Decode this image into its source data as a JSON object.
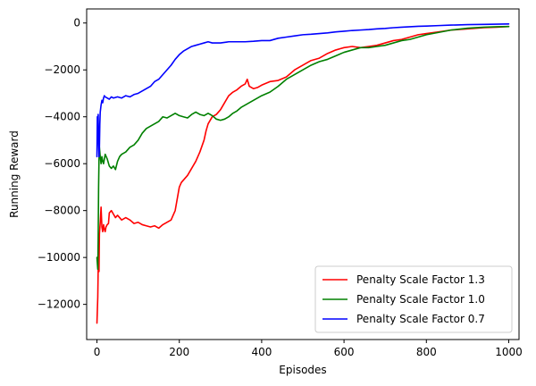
{
  "chart_data": {
    "type": "line",
    "title": "",
    "xlabel": "Episodes",
    "ylabel": "Running Reward",
    "xlim": [
      -25,
      1025
    ],
    "ylim": [
      -13500,
      600
    ],
    "xticks": [
      0,
      200,
      400,
      600,
      800,
      1000
    ],
    "yticks": [
      -12000,
      -10000,
      -8000,
      -6000,
      -4000,
      -2000,
      0
    ],
    "grid": false,
    "legend_position": "lower-right",
    "series": [
      {
        "name": "Penalty Scale Factor 1.3",
        "color": "#ff0000",
        "x": [
          0,
          2,
          3,
          5,
          6,
          8,
          10,
          12,
          14,
          16,
          18,
          20,
          22,
          25,
          28,
          30,
          35,
          40,
          45,
          50,
          55,
          60,
          70,
          80,
          90,
          100,
          110,
          120,
          130,
          140,
          150,
          160,
          170,
          180,
          190,
          200,
          205,
          210,
          220,
          230,
          240,
          250,
          260,
          265,
          270,
          280,
          290,
          300,
          310,
          320,
          330,
          340,
          350,
          360,
          365,
          370,
          380,
          390,
          400,
          420,
          440,
          460,
          480,
          500,
          520,
          540,
          560,
          580,
          600,
          620,
          640,
          660,
          680,
          700,
          720,
          740,
          760,
          780,
          800,
          830,
          860,
          900,
          940,
          970,
          1000
        ],
        "values": [
          -12800,
          -11700,
          -10500,
          -10600,
          -9000,
          -8500,
          -7850,
          -8700,
          -8900,
          -8600,
          -8800,
          -8900,
          -8700,
          -8600,
          -8550,
          -8100,
          -8000,
          -8150,
          -8300,
          -8200,
          -8300,
          -8400,
          -8300,
          -8400,
          -8550,
          -8500,
          -8600,
          -8650,
          -8700,
          -8650,
          -8750,
          -8600,
          -8500,
          -8400,
          -8000,
          -7000,
          -6800,
          -6700,
          -6500,
          -6200,
          -5900,
          -5500,
          -5000,
          -4600,
          -4300,
          -4000,
          -3900,
          -3700,
          -3400,
          -3100,
          -2950,
          -2850,
          -2700,
          -2600,
          -2400,
          -2700,
          -2800,
          -2750,
          -2650,
          -2500,
          -2450,
          -2300,
          -2000,
          -1800,
          -1600,
          -1500,
          -1300,
          -1150,
          -1050,
          -1000,
          -1050,
          -1000,
          -950,
          -850,
          -750,
          -700,
          -600,
          -500,
          -450,
          -380,
          -300,
          -250,
          -200,
          -180,
          -150
        ]
      },
      {
        "name": "Penalty Scale Factor 1.0",
        "color": "#008000",
        "x": [
          0,
          2,
          3,
          4,
          5,
          6,
          7,
          8,
          10,
          12,
          14,
          16,
          18,
          20,
          25,
          30,
          35,
          40,
          45,
          50,
          55,
          60,
          70,
          80,
          90,
          100,
          110,
          120,
          130,
          140,
          150,
          160,
          170,
          180,
          190,
          200,
          210,
          220,
          230,
          240,
          250,
          260,
          270,
          280,
          290,
          300,
          310,
          320,
          330,
          340,
          350,
          360,
          370,
          380,
          390,
          400,
          420,
          440,
          460,
          480,
          500,
          520,
          540,
          560,
          580,
          600,
          620,
          640,
          660,
          680,
          700,
          720,
          740,
          760,
          780,
          800,
          830,
          860,
          900,
          940,
          970,
          1000
        ],
        "values": [
          -10000,
          -10500,
          -9200,
          -7000,
          -5800,
          -5300,
          -5500,
          -5700,
          -6000,
          -5700,
          -5900,
          -6000,
          -5800,
          -5600,
          -5800,
          -6100,
          -6200,
          -6100,
          -6250,
          -5900,
          -5700,
          -5600,
          -5500,
          -5300,
          -5200,
          -5000,
          -4700,
          -4500,
          -4400,
          -4300,
          -4200,
          -4000,
          -4050,
          -3950,
          -3850,
          -3950,
          -4000,
          -4050,
          -3900,
          -3800,
          -3900,
          -3950,
          -3850,
          -3950,
          -4100,
          -4150,
          -4100,
          -4000,
          -3850,
          -3750,
          -3600,
          -3500,
          -3400,
          -3300,
          -3200,
          -3100,
          -2950,
          -2700,
          -2400,
          -2200,
          -2000,
          -1800,
          -1650,
          -1550,
          -1400,
          -1250,
          -1150,
          -1050,
          -1050,
          -1000,
          -950,
          -850,
          -750,
          -700,
          -600,
          -500,
          -400,
          -300,
          -220,
          -180,
          -160,
          -150
        ]
      },
      {
        "name": "Penalty Scale Factor 0.7",
        "color": "#0000ff",
        "x": [
          0,
          1,
          2,
          3,
          4,
          5,
          6,
          7,
          8,
          10,
          12,
          14,
          16,
          18,
          20,
          25,
          30,
          35,
          40,
          50,
          60,
          70,
          80,
          90,
          100,
          110,
          120,
          130,
          140,
          150,
          160,
          170,
          180,
          190,
          200,
          210,
          220,
          230,
          240,
          250,
          260,
          270,
          280,
          300,
          320,
          340,
          360,
          380,
          400,
          420,
          440,
          460,
          480,
          500,
          520,
          540,
          560,
          580,
          600,
          620,
          640,
          660,
          680,
          700,
          720,
          740,
          760,
          780,
          800,
          830,
          860,
          900,
          940,
          970,
          1000
        ],
        "values": [
          -5700,
          -4000,
          -4500,
          -3900,
          -5200,
          -5700,
          -5300,
          -4300,
          -3800,
          -3500,
          -3300,
          -3400,
          -3200,
          -3100,
          -3150,
          -3200,
          -3250,
          -3150,
          -3200,
          -3150,
          -3200,
          -3100,
          -3150,
          -3050,
          -3000,
          -2900,
          -2800,
          -2700,
          -2500,
          -2400,
          -2200,
          -2000,
          -1800,
          -1550,
          -1350,
          -1200,
          -1100,
          -1000,
          -950,
          -900,
          -850,
          -800,
          -850,
          -850,
          -800,
          -800,
          -800,
          -780,
          -750,
          -750,
          -650,
          -600,
          -550,
          -500,
          -480,
          -450,
          -420,
          -380,
          -350,
          -320,
          -300,
          -280,
          -250,
          -230,
          -200,
          -180,
          -160,
          -140,
          -130,
          -110,
          -90,
          -70,
          -60,
          -50,
          -40
        ]
      }
    ]
  }
}
